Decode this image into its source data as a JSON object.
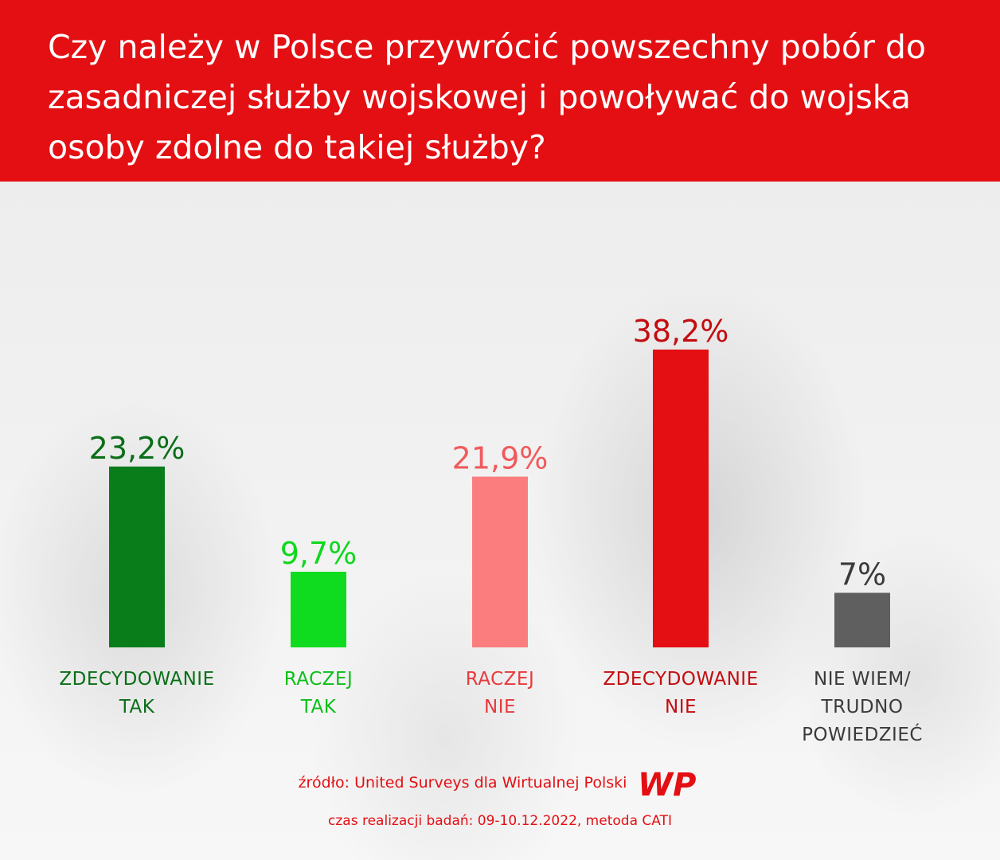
{
  "header": {
    "title": "Czy należy w Polsce przywrócić powszechny pobór do zasadniczej służby wojskowej i powoływać do wojska osoby zdolne do takiej służby?"
  },
  "chart_data": {
    "type": "bar",
    "categories": [
      "ZDECYDOWANIE TAK",
      "RACZEJ TAK",
      "RACZEJ NIE",
      "ZDECYDOWANIE NIE",
      "NIE WIEM/ TRUDNO POWIEDZIEĆ"
    ],
    "category_lines": [
      [
        "ZDECYDOWANIE",
        "TAK"
      ],
      [
        "RACZEJ",
        "TAK"
      ],
      [
        "RACZEJ",
        "NIE"
      ],
      [
        "ZDECYDOWANIE",
        "NIE"
      ],
      [
        "NIE WIEM/",
        "TRUDNO",
        "POWIEDZIEĆ"
      ]
    ],
    "values": [
      23.2,
      9.7,
      21.9,
      38.2,
      7
    ],
    "value_labels": [
      "23,2%",
      "9,7%",
      "21,9%",
      "38,2%",
      "7%"
    ],
    "colors": [
      "#0a7d1b",
      "#0fdc1e",
      "#fb7d7d",
      "#e30f13",
      "#5f5f5f"
    ],
    "label_colors": [
      "#0a6e18",
      "#0bbf18",
      "#e8393c",
      "#c40c10",
      "#3a3a3a"
    ],
    "value_label_colors": [
      "#0a6e18",
      "#0fd81e",
      "#f05a5c",
      "#c40c10",
      "#3a3a3a"
    ],
    "ylim": [
      0,
      38.2
    ],
    "grid": false,
    "legend": "none"
  },
  "footer": {
    "source": "źródło: United Surveys dla Wirtualnej Polski",
    "dates": "czas realizacji badań: 09-10.12.2022, metoda CATI",
    "logo_text": "WP",
    "accent_color": "#e30f13"
  }
}
